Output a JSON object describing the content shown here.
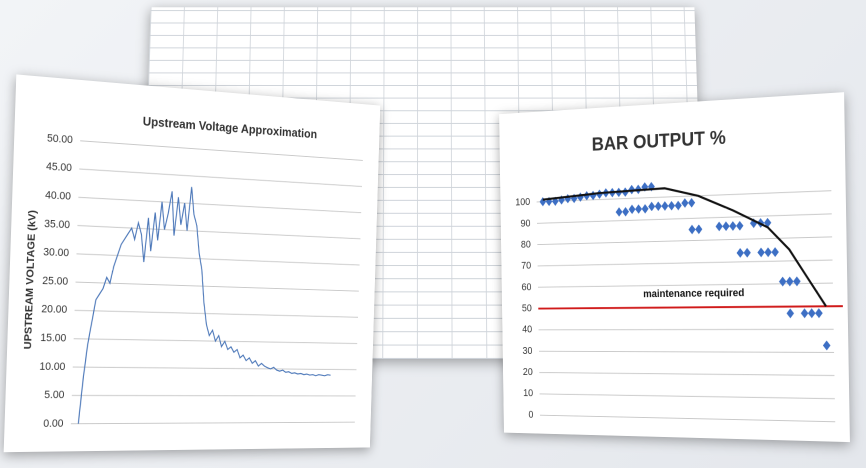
{
  "chart_data": [
    {
      "type": "line",
      "title": "Upstream Voltage Approximation",
      "y_label": "UPSTREAM VOLTAGE (kV)",
      "color": "#4a76b8",
      "grid": true,
      "ylim": [
        0,
        50
      ],
      "yticks": [
        {
          "value": 0,
          "label": "0.00"
        },
        {
          "value": 5,
          "label": "5.00"
        },
        {
          "value": 10,
          "label": "10.00"
        },
        {
          "value": 15,
          "label": "15.00"
        },
        {
          "value": 20,
          "label": "20.00"
        },
        {
          "value": 25,
          "label": "25.00"
        },
        {
          "value": 30,
          "label": "30.00"
        },
        {
          "value": 35,
          "label": "35.00"
        },
        {
          "value": 40,
          "label": "40.00"
        },
        {
          "value": 45,
          "label": "45.00"
        },
        {
          "value": 50,
          "label": "50.00"
        }
      ],
      "values": [
        0,
        8,
        14,
        18,
        22,
        23,
        24,
        26,
        25,
        28,
        30,
        32,
        33,
        34,
        35,
        33,
        36,
        34,
        29,
        37,
        31,
        38,
        33,
        40,
        35,
        38,
        42,
        34,
        41,
        36,
        40,
        35,
        43,
        38,
        36,
        31,
        28,
        22,
        18,
        16,
        17,
        15,
        16,
        14,
        15,
        13.5,
        14,
        13,
        13.5,
        12,
        12.5,
        11.5,
        12,
        11,
        11.5,
        10.5,
        11,
        10.5,
        10.2,
        10,
        10.3,
        9.8,
        9.6,
        9.8,
        9.4,
        9.5,
        9.2,
        9.3,
        9.1,
        9.2,
        9,
        9.1,
        8.9,
        9,
        8.8,
        9,
        8.9,
        8.8,
        9,
        8.9
      ]
    },
    {
      "type": "scatter",
      "title": "BAR OUTPUT %",
      "grid": true,
      "ylim": [
        0,
        110
      ],
      "yticks": [
        0,
        10,
        20,
        30,
        40,
        50,
        60,
        70,
        80,
        90,
        100
      ],
      "xlim": [
        0,
        44
      ],
      "series": [
        {
          "type": "scatter",
          "color": "#3d6fc4",
          "x": [
            1,
            2,
            3,
            4,
            5,
            6,
            7,
            8,
            9,
            10,
            11,
            12,
            13,
            14,
            15,
            16,
            17,
            18,
            13,
            14,
            15,
            16,
            17,
            18,
            19,
            20,
            21,
            22,
            23,
            24,
            24,
            25,
            28,
            29,
            30,
            31,
            33,
            34,
            35,
            31,
            32,
            34,
            35,
            36,
            37,
            38,
            39,
            38,
            40,
            41,
            42,
            43
          ],
          "values": [
            100,
            100,
            100,
            100.5,
            101,
            101,
            101.5,
            102,
            102,
            102.5,
            103,
            103,
            103,
            103,
            104,
            104,
            105,
            105,
            94,
            94,
            95,
            95,
            95,
            96,
            96,
            96,
            96,
            96,
            97,
            97,
            85,
            85,
            86,
            86,
            86,
            86,
            87,
            87,
            87,
            74,
            74,
            74,
            74,
            74,
            61,
            61,
            61,
            47,
            47,
            47,
            47,
            33
          ]
        },
        {
          "type": "line",
          "color": "#111111",
          "x": [
            1,
            10,
            20,
            25,
            30,
            35,
            38,
            40,
            43
          ],
          "values": [
            101,
            103,
            104,
            100,
            93,
            85,
            75,
            65,
            50
          ]
        }
      ],
      "reference_line": {
        "value": 50,
        "color": "#d01a1a"
      },
      "annotation": "maintenance required"
    }
  ]
}
